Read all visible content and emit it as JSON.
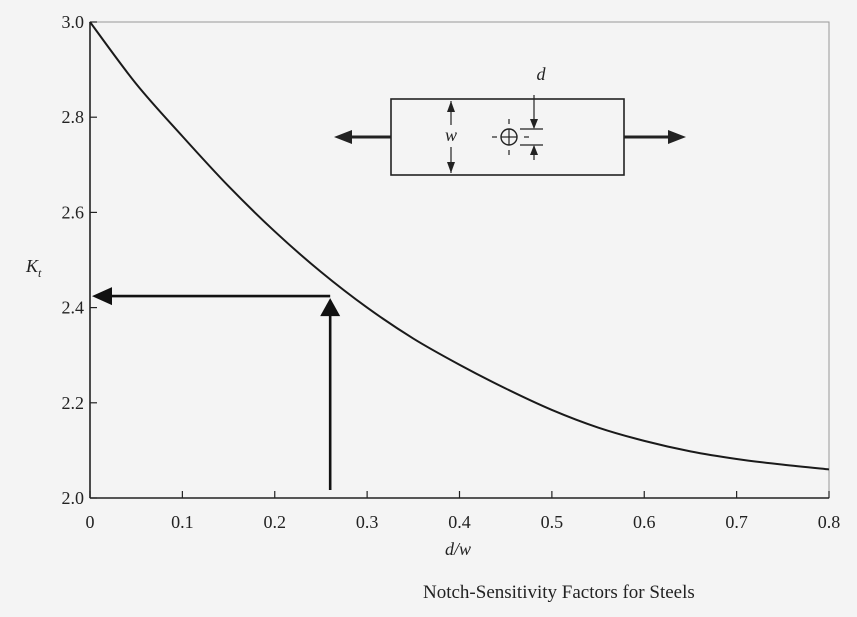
{
  "chart_data": {
    "type": "line",
    "title": "",
    "xlabel": "d/w",
    "ylabel": "K",
    "ylabel_subscript": "t",
    "xlim": [
      0,
      0.8
    ],
    "ylim": [
      2.0,
      3.0
    ],
    "x_ticks": [
      "0",
      "0.1",
      "0.2",
      "0.3",
      "0.4",
      "0.5",
      "0.6",
      "0.7",
      "0.8"
    ],
    "y_ticks": [
      "2.0",
      "2.2",
      "2.4",
      "2.6",
      "2.8",
      "3.0"
    ],
    "grid": false,
    "series": [
      {
        "x": [
          0,
          0.05,
          0.1,
          0.15,
          0.2,
          0.25,
          0.3,
          0.35,
          0.4,
          0.45,
          0.5,
          0.55,
          0.6,
          0.65,
          0.7,
          0.75,
          0.8
        ],
        "y": [
          3.0,
          2.87,
          2.76,
          2.655,
          2.56,
          2.475,
          2.4,
          2.335,
          2.28,
          2.23,
          2.185,
          2.148,
          2.12,
          2.098,
          2.082,
          2.07,
          2.06
        ]
      }
    ],
    "annotations": {
      "arrow_x": 0.26,
      "arrow_y": 2.42,
      "inset_labels": {
        "d": "d",
        "w": "w"
      }
    }
  },
  "caption": "Notch-Sensitivity Factors for Steels"
}
